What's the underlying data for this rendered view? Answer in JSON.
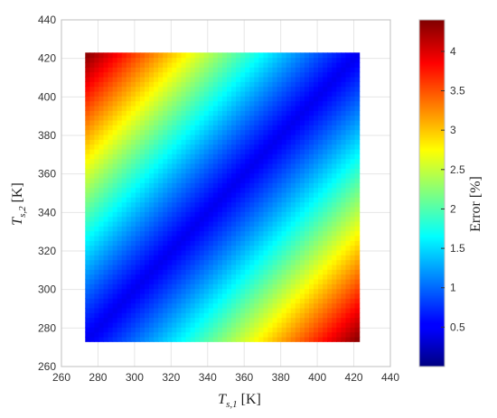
{
  "chart_data": {
    "type": "heatmap",
    "title": "",
    "xlabel": {
      "base": "T",
      "sub": "s,1",
      "unit": " [K]"
    },
    "ylabel": {
      "base": "T",
      "sub": "s,2",
      "unit": " [K]"
    },
    "xlim": [
      260,
      440
    ],
    "ylim": [
      260,
      440
    ],
    "x_ticks": [
      260,
      280,
      300,
      320,
      340,
      360,
      380,
      400,
      420,
      440
    ],
    "y_ticks": [
      260,
      280,
      300,
      320,
      340,
      360,
      380,
      400,
      420,
      440
    ],
    "data_extent": {
      "x": [
        273,
        423
      ],
      "y": [
        273,
        423
      ]
    },
    "z_model": "error grows with distance from the diagonal T_s1 = T_s2 (0 on the diagonal, ~4.4 at the corners (273,423) and (423,273))",
    "colorbar": {
      "label": "Error [%]",
      "range": [
        0,
        4.4
      ],
      "ticks": [
        0.5,
        1,
        1.5,
        2,
        2.5,
        3,
        3.5,
        4
      ],
      "colormap": "jet"
    },
    "grid": true
  },
  "colors": {
    "grid": "#e6e6e6",
    "axis": "#bfbfbf",
    "text": "#333333"
  }
}
